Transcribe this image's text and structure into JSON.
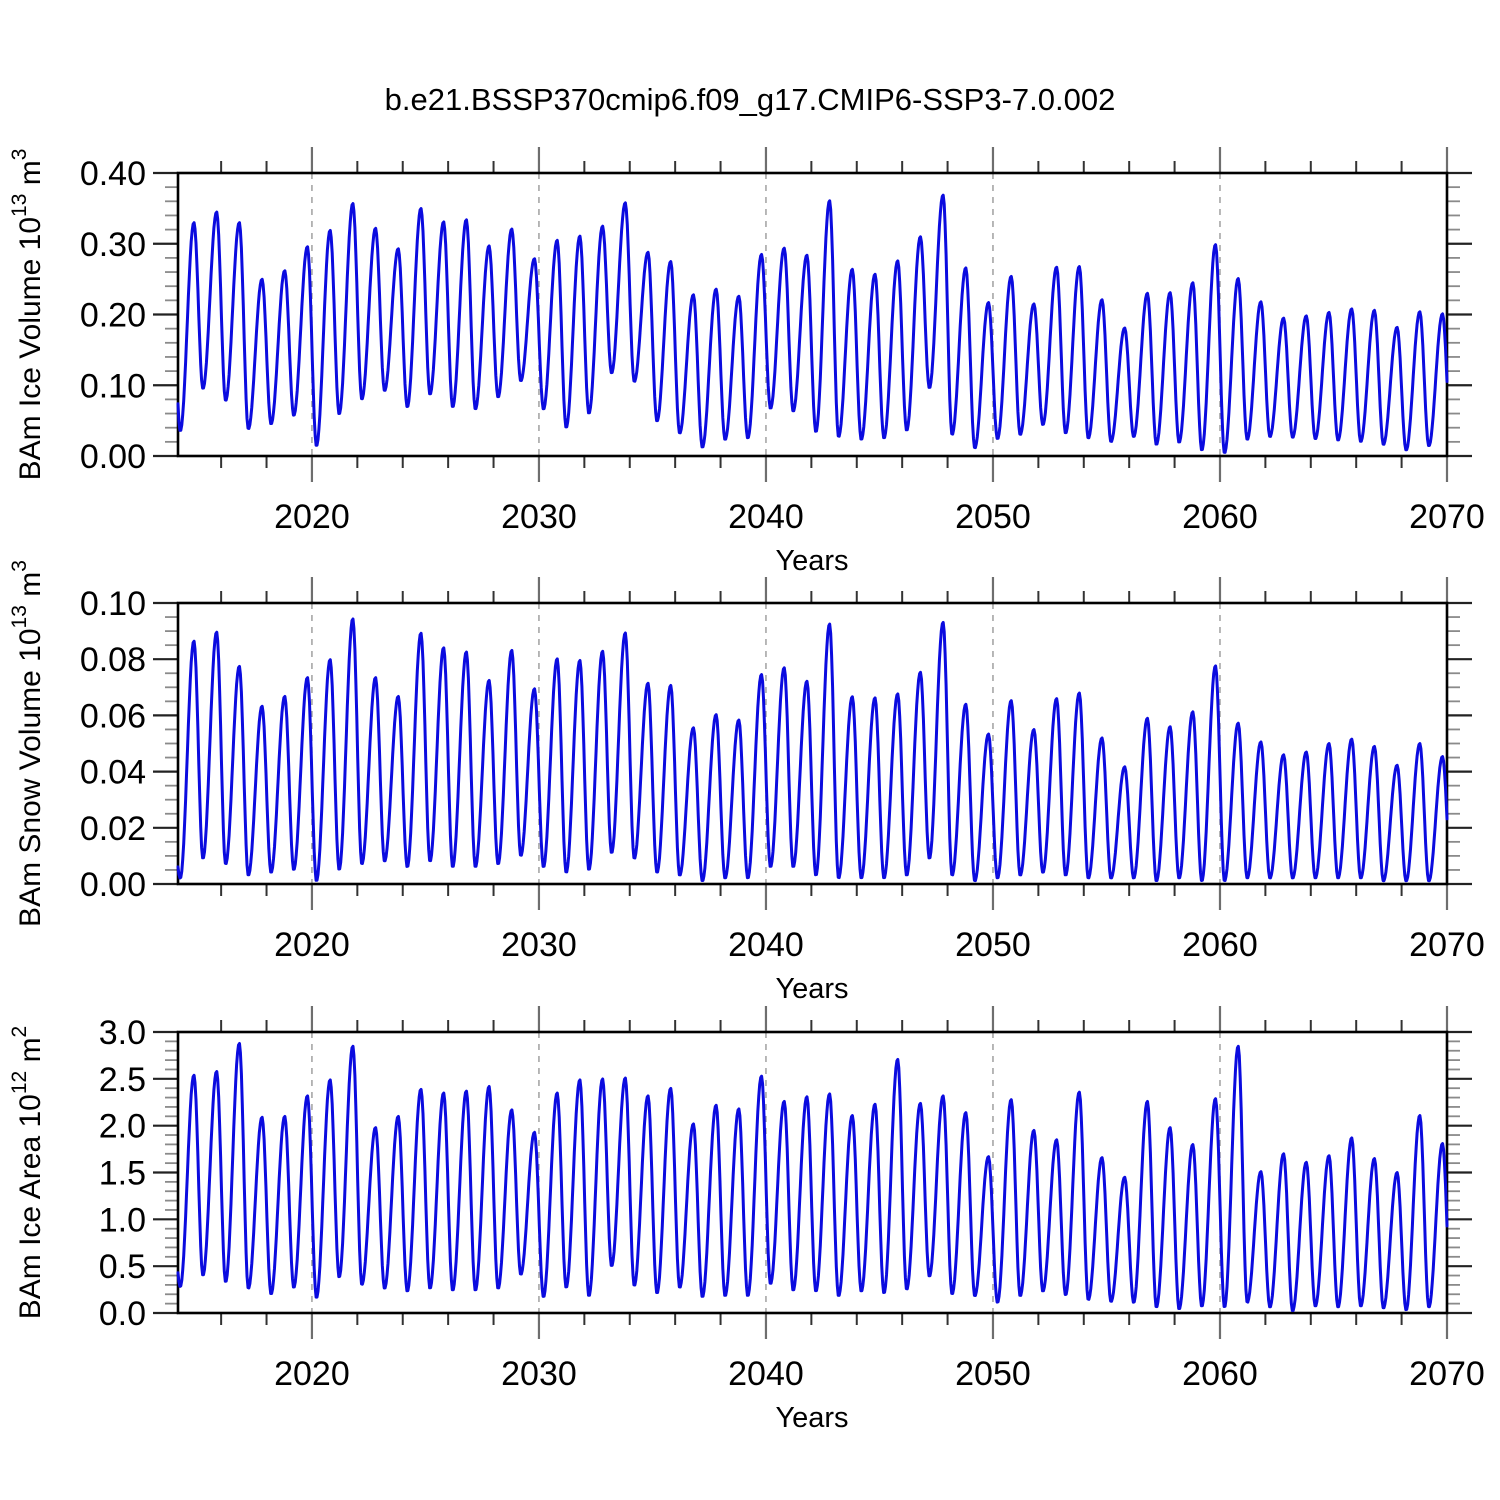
{
  "chart_data": {
    "type": "line",
    "title": "b.e21.BSSP370cmip6.f09_g17.CMIP6-SSP3-7.0.002",
    "line_color": "#0b0bdf",
    "gridline_color": "#999999",
    "x": {
      "label": "Years",
      "range": [
        2014.1,
        2070.0
      ],
      "ticks": [
        2020,
        2030,
        2040,
        2050,
        2060,
        2070
      ],
      "minor_step_years": 2,
      "gridlines": [
        2020,
        2030,
        2040,
        2050,
        2060
      ]
    },
    "seasonal_model": {
      "comment": "monthly-resolution annual cycle; yearly maximum near year+0.8, following minimum near year+1.2, half-cosine interpolation",
      "peak_phase": 0.8,
      "trough_phase": 1.2,
      "samples_per_year": 24,
      "pre_peak_time": 2013.8,
      "start_trough_time": 2014.2
    },
    "year_start": 2014,
    "panels": [
      {
        "id": "ice-volume",
        "ylabel_prefix": "BAm Ice Volume 10",
        "ylabel_exp": "13",
        "ylabel_mid": " m",
        "ylabel_exp2": "3",
        "ylim": [
          0,
          0.4
        ],
        "yticks": [
          "0.00",
          "0.10",
          "0.20",
          "0.30",
          "0.40"
        ],
        "ytick_values": [
          0.0,
          0.1,
          0.2,
          0.3,
          0.4
        ],
        "y_minor_step": 0.02,
        "pre_peak": 0.3,
        "start_trough": 0.035,
        "annual_peaks": [
          0.33,
          0.345,
          0.33,
          0.25,
          0.262,
          0.296,
          0.319,
          0.357,
          0.322,
          0.293,
          0.35,
          0.331,
          0.334,
          0.297,
          0.321,
          0.279,
          0.305,
          0.311,
          0.325,
          0.358,
          0.288,
          0.275,
          0.228,
          0.236,
          0.226,
          0.285,
          0.294,
          0.284,
          0.361,
          0.264,
          0.257,
          0.276,
          0.31,
          0.369,
          0.266,
          0.217,
          0.254,
          0.215,
          0.267,
          0.268,
          0.221,
          0.181,
          0.23,
          0.231,
          0.245,
          0.299,
          0.251,
          0.218,
          0.195,
          0.198,
          0.203,
          0.208,
          0.206,
          0.182,
          0.204,
          0.201
        ],
        "annual_troughs": [
          0.095,
          0.078,
          0.038,
          0.045,
          0.057,
          0.014,
          0.059,
          0.08,
          0.092,
          0.069,
          0.087,
          0.069,
          0.066,
          0.083,
          0.106,
          0.066,
          0.04,
          0.06,
          0.117,
          0.105,
          0.049,
          0.032,
          0.012,
          0.023,
          0.025,
          0.067,
          0.063,
          0.034,
          0.027,
          0.023,
          0.025,
          0.036,
          0.096,
          0.03,
          0.011,
          0.024,
          0.03,
          0.044,
          0.032,
          0.025,
          0.02,
          0.027,
          0.016,
          0.019,
          0.008,
          0.004,
          0.023,
          0.027,
          0.026,
          0.024,
          0.022,
          0.02,
          0.016,
          0.008,
          0.014,
          0.01
        ]
      },
      {
        "id": "snow-volume",
        "ylabel_prefix": "BAm Snow Volume 10",
        "ylabel_exp": "13",
        "ylabel_mid": " m",
        "ylabel_exp2": "3",
        "ylim": [
          0,
          0.1
        ],
        "yticks": [
          "0.00",
          "0.02",
          "0.04",
          "0.06",
          "0.08",
          "0.10"
        ],
        "ytick_values": [
          0.0,
          0.02,
          0.04,
          0.06,
          0.08,
          0.1
        ],
        "y_minor_step": 0.005,
        "pre_peak": 0.03,
        "start_trough": 0.002,
        "annual_peaks": [
          0.0865,
          0.0897,
          0.0775,
          0.0633,
          0.0668,
          0.0735,
          0.0799,
          0.0944,
          0.0735,
          0.0668,
          0.0893,
          0.0841,
          0.0826,
          0.0725,
          0.0832,
          0.0695,
          0.0802,
          0.0796,
          0.0829,
          0.0894,
          0.0715,
          0.0707,
          0.0556,
          0.0603,
          0.0584,
          0.0746,
          0.077,
          0.0722,
          0.0926,
          0.0667,
          0.0663,
          0.0677,
          0.0754,
          0.0932,
          0.064,
          0.0534,
          0.0653,
          0.055,
          0.066,
          0.068,
          0.052,
          0.0417,
          0.059,
          0.056,
          0.0613,
          0.0777,
          0.0573,
          0.0506,
          0.046,
          0.047,
          0.05,
          0.0516,
          0.049,
          0.0423,
          0.05,
          0.0454
        ],
        "annual_troughs": [
          0.009,
          0.007,
          0.003,
          0.004,
          0.005,
          0.001,
          0.005,
          0.007,
          0.008,
          0.006,
          0.008,
          0.006,
          0.006,
          0.007,
          0.01,
          0.006,
          0.004,
          0.005,
          0.011,
          0.009,
          0.004,
          0.003,
          0.001,
          0.002,
          0.002,
          0.006,
          0.006,
          0.003,
          0.002,
          0.002,
          0.002,
          0.003,
          0.009,
          0.003,
          0.001,
          0.002,
          0.003,
          0.004,
          0.003,
          0.002,
          0.002,
          0.002,
          0.001,
          0.002,
          0.001,
          0.001,
          0.002,
          0.002,
          0.002,
          0.002,
          0.002,
          0.002,
          0.001,
          0.001,
          0.001,
          0.001
        ]
      },
      {
        "id": "ice-area",
        "ylabel_prefix": "BAm Ice Area 10",
        "ylabel_exp": "12",
        "ylabel_mid": " m",
        "ylabel_exp2": "2",
        "ylim": [
          0,
          3.0
        ],
        "yticks": [
          "0.0",
          "0.5",
          "1.0",
          "1.5",
          "2.0",
          "2.5",
          "3.0"
        ],
        "ytick_values": [
          0.0,
          0.5,
          1.0,
          1.5,
          2.0,
          2.5,
          3.0
        ],
        "y_minor_step": 0.1,
        "pre_peak": 1.3,
        "start_trough": 0.28,
        "annual_peaks": [
          2.54,
          2.58,
          2.88,
          2.09,
          2.1,
          2.32,
          2.49,
          2.85,
          1.98,
          2.1,
          2.39,
          2.35,
          2.37,
          2.42,
          2.17,
          1.93,
          2.35,
          2.49,
          2.5,
          2.51,
          2.32,
          2.4,
          2.02,
          2.22,
          2.18,
          2.53,
          2.26,
          2.31,
          2.34,
          2.11,
          2.23,
          2.71,
          2.24,
          2.32,
          2.14,
          1.67,
          2.28,
          1.95,
          1.85,
          2.36,
          1.66,
          1.45,
          2.26,
          1.98,
          1.8,
          2.29,
          2.85,
          1.51,
          1.7,
          1.61,
          1.68,
          1.87,
          1.65,
          1.5,
          2.11,
          1.81
        ],
        "annual_troughs": [
          0.4,
          0.33,
          0.26,
          0.2,
          0.27,
          0.16,
          0.38,
          0.3,
          0.26,
          0.23,
          0.26,
          0.24,
          0.24,
          0.26,
          0.41,
          0.17,
          0.27,
          0.18,
          0.5,
          0.29,
          0.21,
          0.27,
          0.17,
          0.18,
          0.18,
          0.31,
          0.24,
          0.23,
          0.18,
          0.23,
          0.21,
          0.25,
          0.39,
          0.2,
          0.18,
          0.11,
          0.18,
          0.23,
          0.19,
          0.14,
          0.12,
          0.11,
          0.06,
          0.04,
          0.07,
          0.06,
          0.11,
          0.06,
          0.02,
          0.07,
          0.06,
          0.07,
          0.05,
          0.03,
          0.06,
          0.05
        ]
      }
    ]
  }
}
